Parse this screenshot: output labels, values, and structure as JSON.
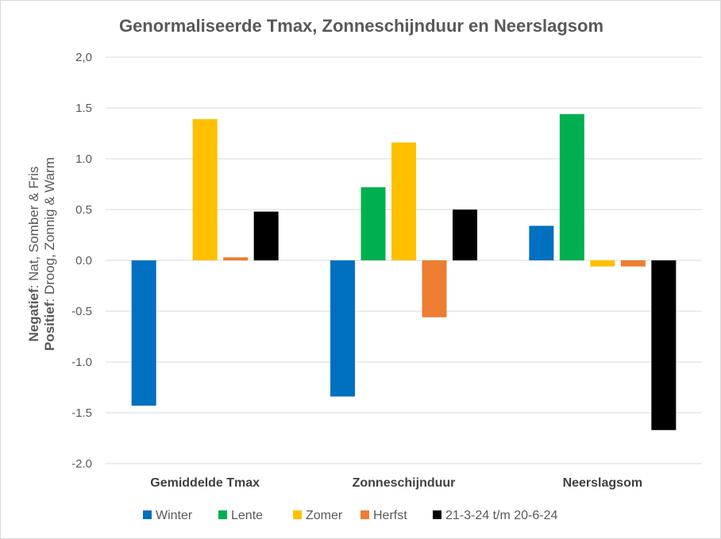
{
  "chart_data": {
    "type": "bar",
    "title": "Genormaliseerde Tmax, Zonneschijnduur en Neerslagsom",
    "xlabel": "",
    "ylabel": {
      "line1_bold": "Negatief",
      "line1_rest": ": Nat, Somber & Fris",
      "line2_bold": "Positief",
      "line2_rest": ": Droog, Zonnig & Warm"
    },
    "ylim": [
      -2.0,
      2.0
    ],
    "yticks": [
      2.0,
      1.5,
      1.0,
      0.5,
      0.0,
      -0.5,
      -1.0,
      -1.5,
      -2.0
    ],
    "ytick_labels": [
      "2,0",
      "1.5",
      "1.0",
      "0.5",
      "0.0",
      "-0.5",
      "-1.0",
      "-1.5",
      "-2.0"
    ],
    "grid": true,
    "legend_position": "bottom",
    "categories": [
      "Gemiddelde Tmax",
      "Zonneschijnduur",
      "Neerslagsom"
    ],
    "series": [
      {
        "name": "Winter",
        "color": "#0070c0",
        "values": [
          -1.43,
          -1.34,
          0.34
        ]
      },
      {
        "name": "Lente",
        "color": "#00b050",
        "values": [
          0.0,
          0.72,
          1.44
        ]
      },
      {
        "name": "Zomer",
        "color": "#ffc000",
        "values": [
          1.39,
          1.16,
          -0.06
        ]
      },
      {
        "name": "Herfst",
        "color": "#ed7d31",
        "values": [
          0.03,
          -0.56,
          -0.06
        ]
      },
      {
        "name": "21-3-24 t/m 20-6-24",
        "color": "#000000",
        "values": [
          0.48,
          0.5,
          -1.67
        ]
      }
    ]
  }
}
